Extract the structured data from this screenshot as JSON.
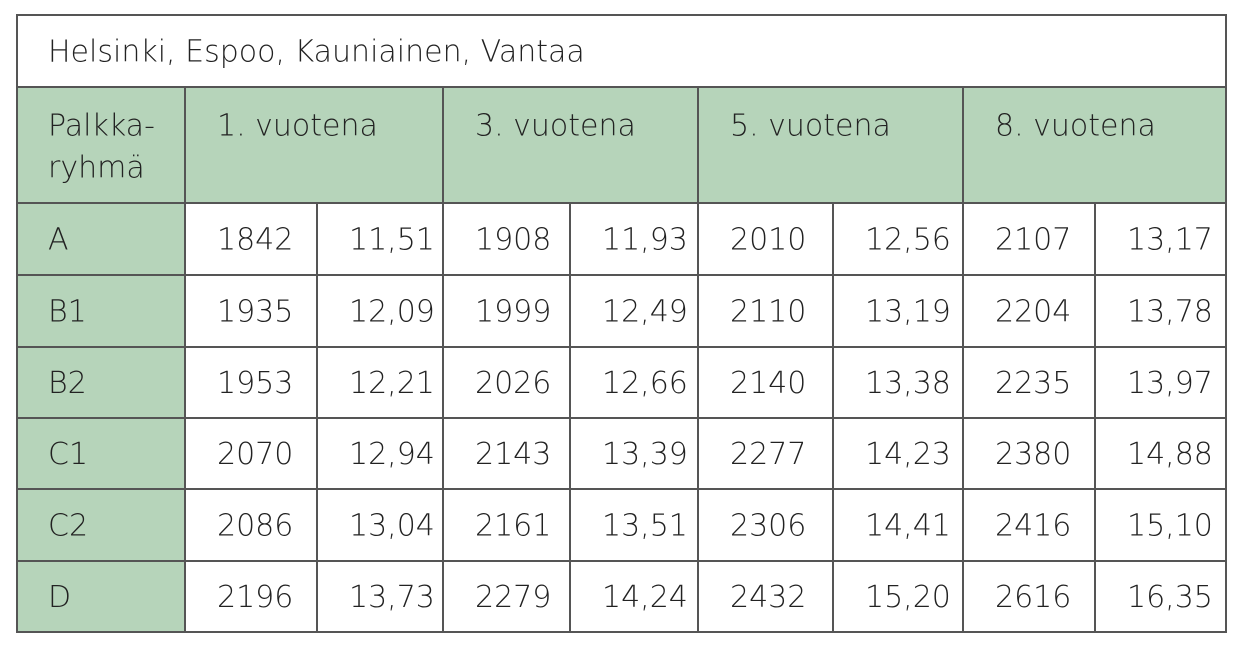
{
  "title": "Helsinki, Espoo, Kauniainen, Vantaa",
  "header": {
    "group": [
      "Palkka-",
      "ryhmä"
    ],
    "years": [
      "1. vuotena",
      "3. vuotena",
      "5. vuotena",
      "8. vuotena"
    ]
  },
  "table": {
    "rows": [
      [
        "A",
        "1842",
        "11,51",
        "1908",
        "11,93",
        "2010",
        "12,56",
        "2107",
        "13,17"
      ],
      [
        "B1",
        "1935",
        "12,09",
        "1999",
        "12,49",
        "2110",
        "13,19",
        "2204",
        "13,78"
      ],
      [
        "B2",
        "1953",
        "12,21",
        "2026",
        "12,66",
        "2140",
        "13,38",
        "2235",
        "13,97"
      ],
      [
        "C1",
        "2070",
        "12,94",
        "2143",
        "13,39",
        "2277",
        "14,23",
        "2380",
        "14,88"
      ],
      [
        "C2",
        "2086",
        "13,04",
        "2161",
        "13,51",
        "2306",
        "14,41",
        "2416",
        "15,10"
      ],
      [
        "D",
        "2196",
        "13,73",
        "2279",
        "14,24",
        "2432",
        "15,20",
        "2616",
        "16,35"
      ]
    ]
  }
}
